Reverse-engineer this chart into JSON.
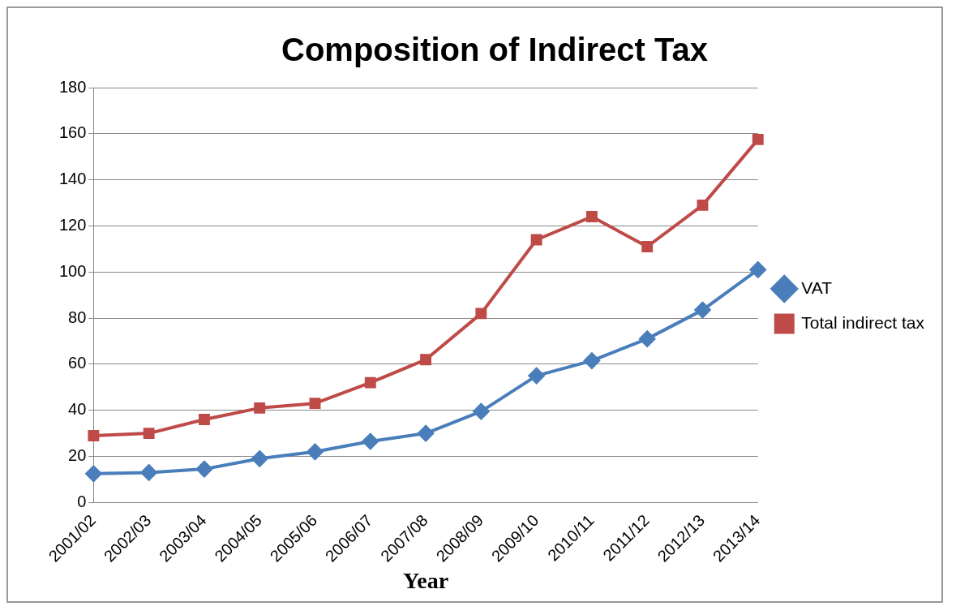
{
  "chart_data": {
    "type": "line",
    "title": "Composition of Indirect Tax",
    "xlabel": "Year",
    "categories": [
      "2001/02",
      "2002/03",
      "2003/04",
      "2004/05",
      "2005/06",
      "2006/07",
      "2007/08",
      "2008/09",
      "2009/10",
      "2010/11",
      "2011/12",
      "2012/13",
      "2013/14"
    ],
    "series": [
      {
        "name": "VAT",
        "color": "#4a7ebb",
        "marker": "diamond",
        "values": [
          12.5,
          13,
          14.5,
          19,
          22,
          26.5,
          30,
          39.5,
          55,
          61.5,
          71,
          83.5,
          101
        ]
      },
      {
        "name": "Total indirect tax",
        "color": "#be4b48",
        "marker": "square",
        "values": [
          29,
          30,
          36,
          41,
          43,
          52,
          62,
          82,
          114,
          124,
          111,
          129,
          157.5
        ]
      }
    ],
    "ylim": [
      0,
      180
    ],
    "yticks": [
      0,
      20,
      40,
      60,
      80,
      100,
      120,
      140,
      160,
      180
    ],
    "grid": "y",
    "legend": "right"
  }
}
